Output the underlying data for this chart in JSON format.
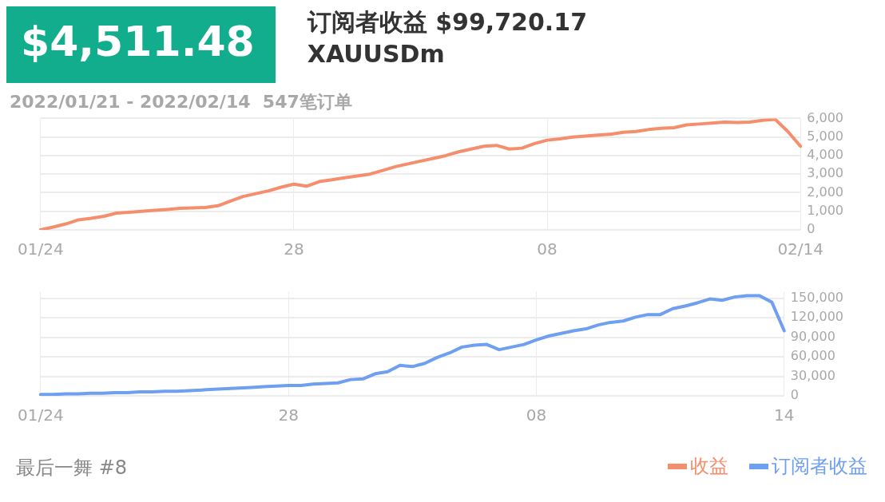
{
  "chart_data": [
    {
      "type": "line",
      "title": "$4,511.48",
      "subtitle": "2022/01/21 - 2022/02/14  547笔订单",
      "annotations": [
        "订阅者收益 $99,720.17",
        "XAUUSDm"
      ],
      "categories": [
        "01/24",
        null,
        null,
        null,
        null,
        null,
        null,
        null,
        null,
        null,
        null,
        null,
        null,
        null,
        null,
        null,
        null,
        null,
        null,
        null,
        "28",
        null,
        null,
        null,
        null,
        null,
        null,
        null,
        null,
        null,
        null,
        null,
        null,
        null,
        null,
        null,
        null,
        null,
        null,
        null,
        "08",
        null,
        null,
        null,
        null,
        null,
        null,
        null,
        null,
        null,
        null,
        null,
        null,
        null,
        null,
        null,
        null,
        null,
        null,
        null,
        "02/14"
      ],
      "series": [
        {
          "name": "收益",
          "color": "#f58e6c",
          "values": [
            0,
            150,
            320,
            540,
            620,
            730,
            900,
            950,
            1000,
            1050,
            1100,
            1160,
            1180,
            1200,
            1300,
            1550,
            1800,
            1950,
            2100,
            2300,
            2460,
            2350,
            2600,
            2700,
            2800,
            2900,
            3000,
            3200,
            3400,
            3550,
            3700,
            3850,
            4000,
            4200,
            4350,
            4500,
            4550,
            4350,
            4400,
            4650,
            4830,
            4900,
            5000,
            5050,
            5100,
            5150,
            5250,
            5300,
            5400,
            5470,
            5500,
            5650,
            5700,
            5750,
            5800,
            5780,
            5800,
            5900,
            5950,
            5300,
            4500
          ]
        }
      ],
      "ylim": [
        0,
        6000
      ],
      "yticks": [
        0,
        {
          "value": 1000,
          "label": "1,000"
        },
        {
          "value": 2000,
          "label": "2,000"
        },
        {
          "value": 3000,
          "label": "3,000"
        },
        {
          "value": 4000,
          "label": "4,000"
        },
        {
          "value": 5000,
          "label": "5,000"
        },
        {
          "value": 6000,
          "label": "6,000"
        }
      ],
      "grid": true,
      "legend": "bottom right",
      "marker": "none",
      "line_style": "solid"
    },
    {
      "type": "line",
      "annotations": [
        "最后一舞 #8"
      ],
      "categories": [
        "01/24",
        null,
        null,
        null,
        null,
        null,
        null,
        null,
        null,
        null,
        null,
        null,
        null,
        null,
        null,
        null,
        null,
        null,
        null,
        null,
        "28",
        null,
        null,
        null,
        null,
        null,
        null,
        null,
        null,
        null,
        null,
        null,
        null,
        null,
        null,
        null,
        null,
        null,
        null,
        null,
        "08",
        null,
        null,
        null,
        null,
        null,
        null,
        null,
        null,
        null,
        null,
        null,
        null,
        null,
        null,
        null,
        null,
        null,
        null,
        null,
        "14"
      ],
      "series": [
        {
          "name": "订阅者收益",
          "color": "#6e9ff0",
          "values": [
            2000,
            2000,
            3000,
            3000,
            4000,
            4000,
            5000,
            5000,
            6000,
            6000,
            7000,
            7000,
            8000,
            9000,
            10000,
            11000,
            12000,
            13000,
            14000,
            15000,
            16000,
            16000,
            18000,
            19000,
            20000,
            25000,
            26000,
            34000,
            37000,
            47000,
            45000,
            50000,
            59000,
            66000,
            75000,
            78000,
            79000,
            71000,
            75000,
            79000,
            86000,
            92000,
            96000,
            100000,
            103000,
            109000,
            113000,
            115000,
            121000,
            125000,
            125000,
            134000,
            138000,
            143000,
            149000,
            147000,
            152000,
            154000,
            154000,
            144000,
            100000
          ]
        }
      ],
      "ylim": [
        0,
        160000
      ],
      "yticks": [
        0,
        {
          "value": 30000,
          "label": "30,000"
        },
        {
          "value": 60000,
          "label": "60,000"
        },
        {
          "value": 90000,
          "label": "90,000"
        },
        {
          "value": 120000,
          "label": "120,000"
        },
        {
          "value": 150000,
          "label": "150,000"
        }
      ],
      "grid": true,
      "legend": "bottom right",
      "marker": "none",
      "line_style": "solid"
    }
  ]
}
